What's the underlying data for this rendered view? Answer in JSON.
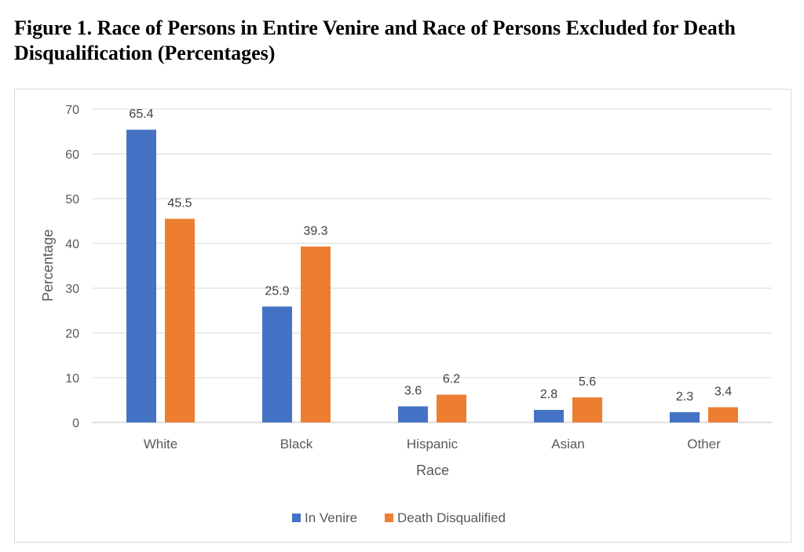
{
  "figure_title": "Figure 1. Race of Persons in Entire Venire and Race of Persons Excluded for Death Disqualification (Percentages)",
  "chart_data": {
    "type": "bar",
    "categories": [
      "White",
      "Black",
      "Hispanic",
      "Asian",
      "Other"
    ],
    "series": [
      {
        "name": "In Venire",
        "color": "#4472c4",
        "values": [
          65.4,
          25.9,
          3.6,
          2.8,
          2.3
        ]
      },
      {
        "name": "Death Disqualified",
        "color": "#ed7d31",
        "values": [
          45.5,
          39.3,
          6.2,
          5.6,
          3.4
        ]
      }
    ],
    "value_labels": [
      [
        "65.4",
        "25.9",
        "3.6",
        "2.8",
        "2.3"
      ],
      [
        "45.5",
        "39.3",
        "6.2",
        "5.6",
        "3.4"
      ]
    ],
    "xlabel": "Race",
    "ylabel": "Percentage",
    "ylim": [
      0,
      70
    ],
    "yticks": [
      "0",
      "10",
      "20",
      "30",
      "40",
      "50",
      "60",
      "70"
    ],
    "grid": true,
    "legend_position": "bottom"
  }
}
